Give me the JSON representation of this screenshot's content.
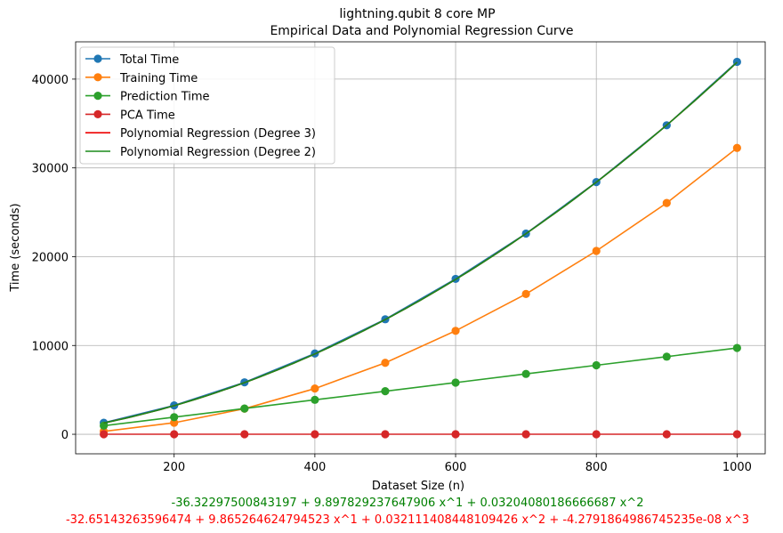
{
  "chart_data": {
    "type": "line",
    "title": "lightning.qubit 8 core MP",
    "subtitle": "Empirical Data and Polynomial Regression Curve",
    "xlabel": "Dataset Size (n)",
    "ylabel": "Time (seconds)",
    "xlim": [
      60,
      1040
    ],
    "ylim": [
      -2200,
      44200
    ],
    "xticks": [
      200,
      400,
      600,
      800,
      1000
    ],
    "yticks": [
      0,
      10000,
      20000,
      30000,
      40000
    ],
    "grid": true,
    "legend_position": "top-left",
    "x": [
      100,
      200,
      300,
      400,
      500,
      600,
      700,
      800,
      900,
      1000
    ],
    "series": [
      {
        "name": "Total Time",
        "color": "#1f77b4",
        "marker": "circle",
        "values": [
          1300,
          3250,
          5850,
          9100,
          12950,
          17500,
          22600,
          28400,
          34800,
          41950
        ]
      },
      {
        "name": "Training Time",
        "color": "#ff7f0e",
        "marker": "circle",
        "values": [
          330,
          1300,
          2880,
          5150,
          8050,
          11650,
          15800,
          20650,
          26050,
          32250
        ]
      },
      {
        "name": "Prediction Time",
        "color": "#2ca02c",
        "marker": "circle",
        "values": [
          970,
          1930,
          2900,
          3880,
          4850,
          5820,
          6800,
          7770,
          8740,
          9720
        ]
      },
      {
        "name": "PCA Time",
        "color": "#d62728",
        "marker": "circle",
        "values": [
          5,
          5,
          5,
          5,
          5,
          5,
          5,
          5,
          5,
          5
        ]
      }
    ],
    "regressions": [
      {
        "name": "Polynomial Regression (Degree 3)",
        "color": "#ee0000",
        "coefficients": [
          -32.65143263596474,
          9.865264624794523,
          0.032111408448109426,
          -4.2791864986745235e-08
        ]
      },
      {
        "name": "Polynomial Regression (Degree 2)",
        "color": "#1a8a1a",
        "coefficients": [
          -36.32297500843197,
          9.897829237647906,
          0.03204080186666687
        ]
      }
    ],
    "equation_deg2": "-36.32297500843197 + 9.897829237647906 x^1 + 0.03204080186666687 x^2",
    "equation_deg3": "-32.65143263596474 + 9.865264624794523 x^1 + 0.032111408448109426 x^2 + -4.2791864986745235e-08 x^3",
    "equation_deg2_color": "#008000",
    "equation_deg3_color": "#ff0000"
  }
}
